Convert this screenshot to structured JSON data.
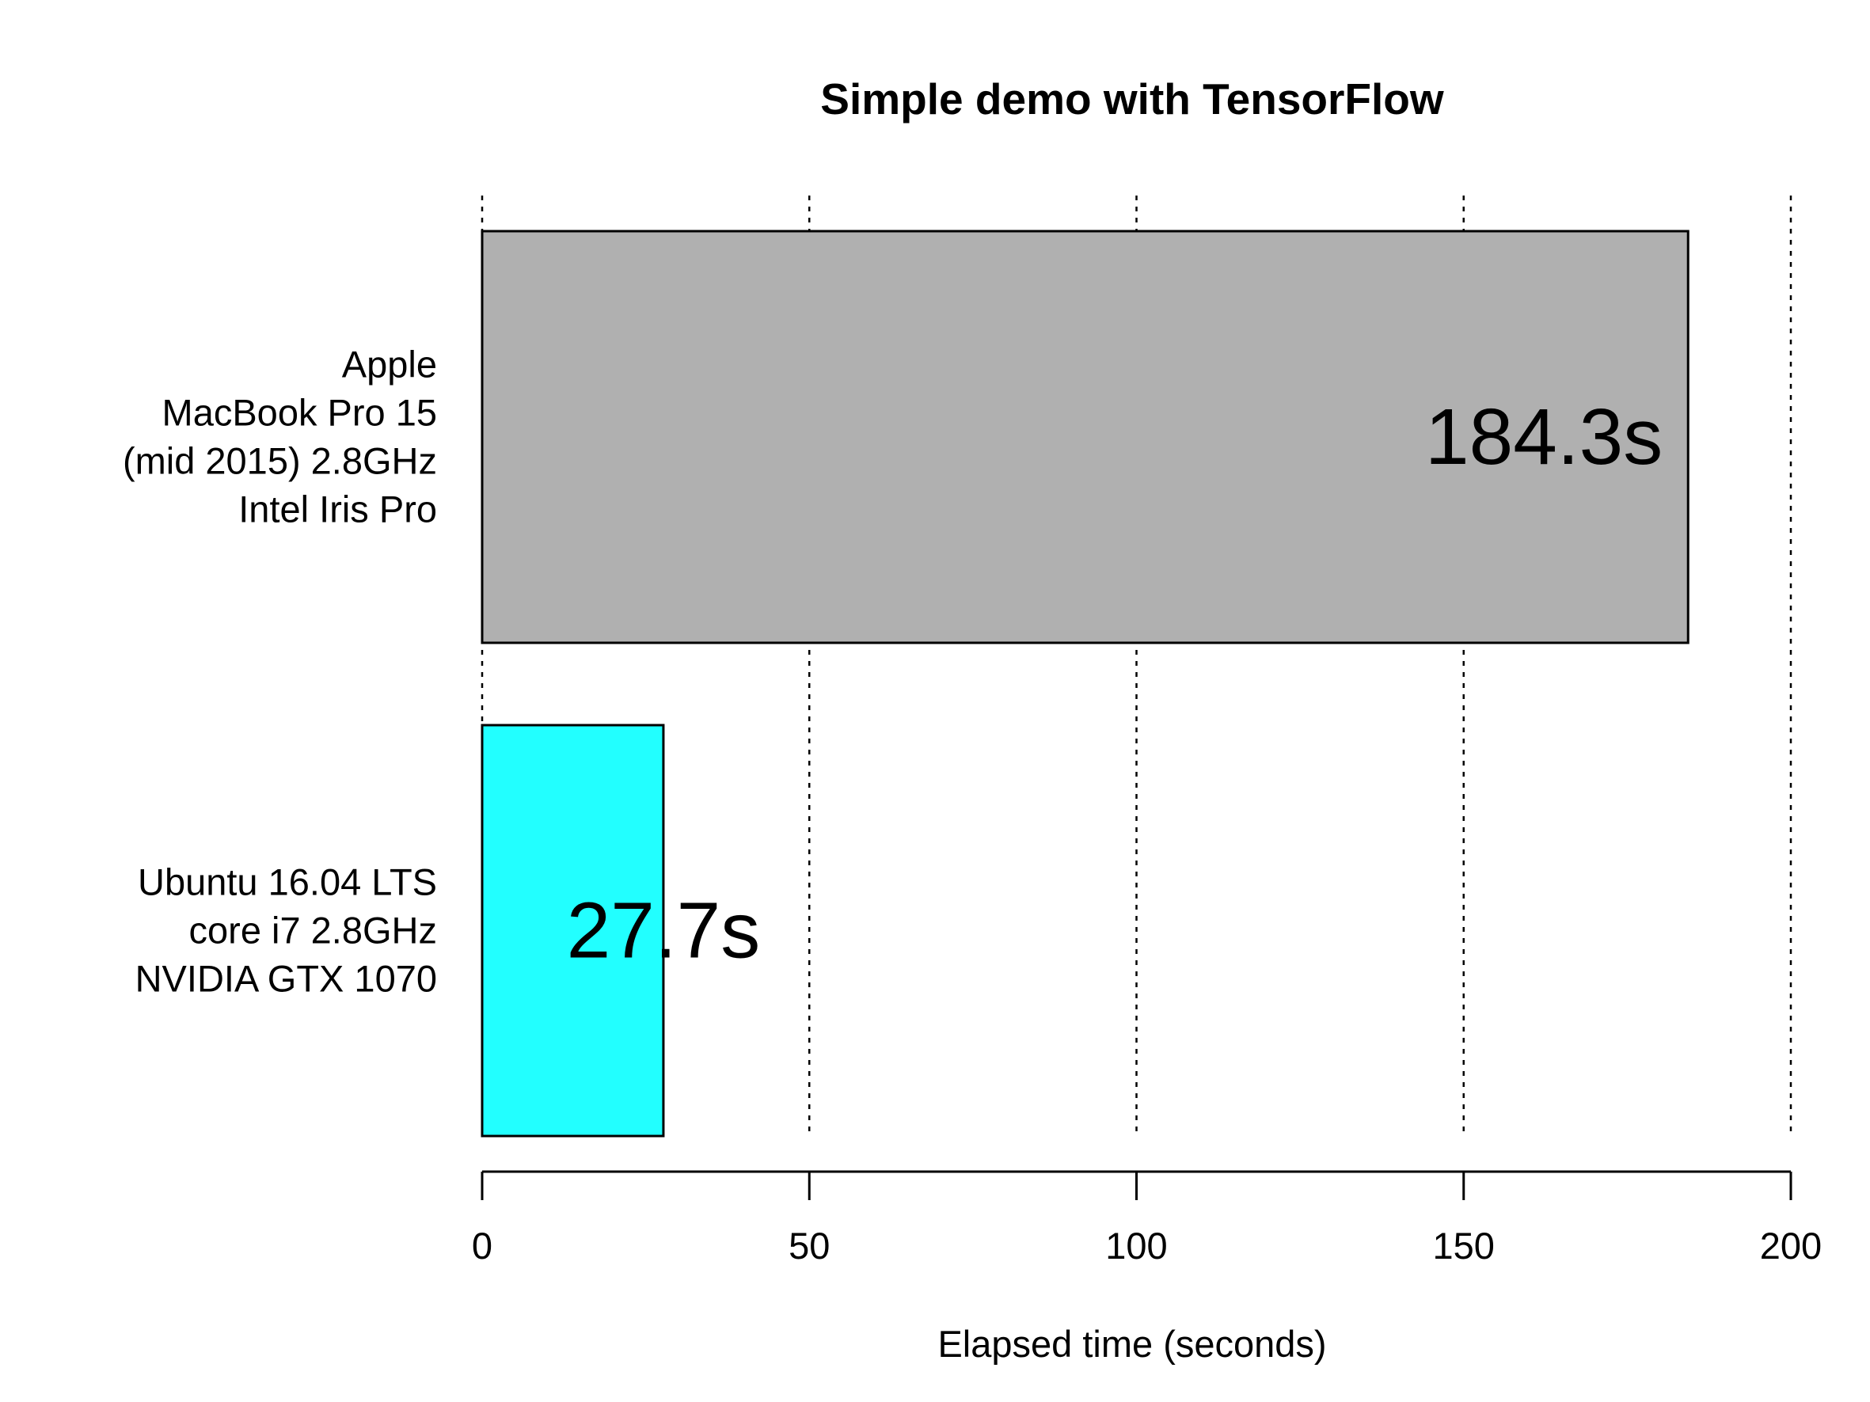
{
  "chart_data": {
    "type": "bar",
    "orientation": "horizontal",
    "title": "Simple demo with TensorFlow",
    "xlabel": "Elapsed time (seconds)",
    "ylabel": "",
    "xlim": [
      0,
      200
    ],
    "xticks": [
      0,
      50,
      100,
      150,
      200
    ],
    "xtick_labels": [
      "0",
      "50",
      "100",
      "150",
      "200"
    ],
    "grid": "vertical dotted",
    "categories": [
      {
        "lines": [
          "Apple",
          "MacBook Pro 15",
          "(mid 2015) 2.8GHz",
          "Intel Iris Pro"
        ]
      },
      {
        "lines": [
          "Ubuntu 16.04 LTS",
          "core i7 2.8GHz",
          "NVIDIA GTX 1070"
        ]
      }
    ],
    "values": [
      184.3,
      27.7
    ],
    "value_labels": [
      "184.3s",
      "27.7s"
    ],
    "colors": [
      "#b0b0b0",
      "#22ffff"
    ]
  }
}
